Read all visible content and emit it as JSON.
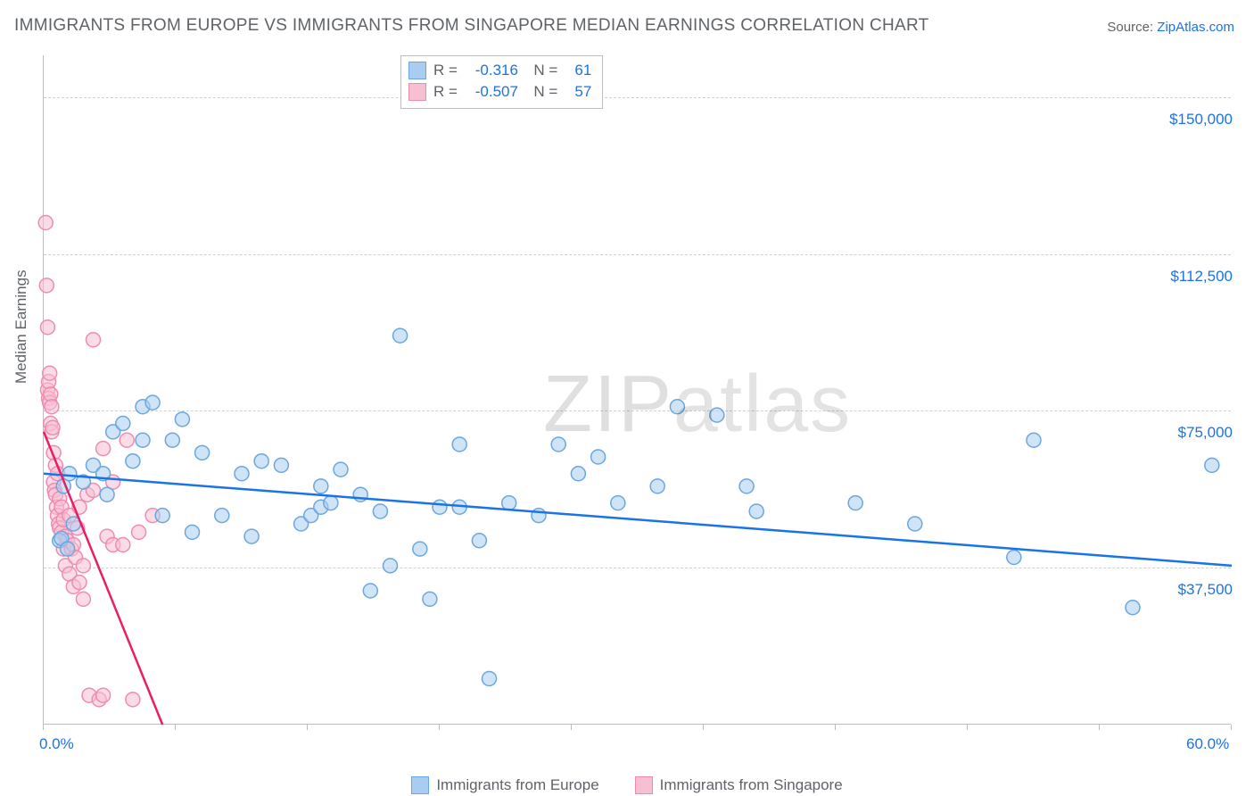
{
  "title": "IMMIGRANTS FROM EUROPE VS IMMIGRANTS FROM SINGAPORE MEDIAN EARNINGS CORRELATION CHART",
  "source_label": "Source: ",
  "source_name": "ZipAtlas.com",
  "yaxis_title": "Median Earnings",
  "watermark_a": "ZIP",
  "watermark_b": "atlas",
  "chart": {
    "type": "scatter",
    "xlim": [
      0,
      60
    ],
    "ylim": [
      0,
      160000
    ],
    "xaxis_labels": [
      {
        "val": 0,
        "text": "0.0%"
      },
      {
        "val": 60,
        "text": "60.0%"
      }
    ],
    "xtick_positions": [
      0,
      6.67,
      13.33,
      20,
      26.67,
      33.33,
      40,
      46.67,
      53.33,
      60
    ],
    "ygrid": [
      {
        "val": 37500,
        "text": "$37,500"
      },
      {
        "val": 75000,
        "text": "$75,000"
      },
      {
        "val": 112500,
        "text": "$112,500"
      },
      {
        "val": 150000,
        "text": "$150,000"
      }
    ],
    "series": [
      {
        "name": "Immigrants from Europe",
        "fill": "#a9cdf0",
        "stroke": "#6ba6de",
        "line_color": "#1a73e8",
        "R": "-0.316",
        "N": "61",
        "trend": {
          "x1": 0,
          "y1": 60000,
          "x2": 60,
          "y2": 38000
        },
        "points": [
          [
            0.8,
            44000
          ],
          [
            0.9,
            44500
          ],
          [
            1.0,
            57000
          ],
          [
            1.2,
            42000
          ],
          [
            1.3,
            60000
          ],
          [
            2.0,
            58000
          ],
          [
            2.5,
            62000
          ],
          [
            3.0,
            60000
          ],
          [
            3.2,
            55000
          ],
          [
            3.5,
            70000
          ],
          [
            4.0,
            72000
          ],
          [
            4.5,
            63000
          ],
          [
            5.0,
            68000
          ],
          [
            5.0,
            76000
          ],
          [
            5.5,
            77000
          ],
          [
            6.0,
            50000
          ],
          [
            6.5,
            68000
          ],
          [
            7.0,
            73000
          ],
          [
            7.5,
            46000
          ],
          [
            8.0,
            65000
          ],
          [
            9.0,
            50000
          ],
          [
            10.0,
            60000
          ],
          [
            10.5,
            45000
          ],
          [
            11.0,
            63000
          ],
          [
            12.0,
            62000
          ],
          [
            13.0,
            48000
          ],
          [
            13.5,
            50000
          ],
          [
            14.0,
            57000
          ],
          [
            14.0,
            52000
          ],
          [
            14.5,
            53000
          ],
          [
            15.0,
            61000
          ],
          [
            16.0,
            55000
          ],
          [
            16.5,
            32000
          ],
          [
            17.0,
            51000
          ],
          [
            17.5,
            38000
          ],
          [
            18.0,
            93000
          ],
          [
            19.0,
            42000
          ],
          [
            19.5,
            30000
          ],
          [
            20.0,
            52000
          ],
          [
            21.0,
            52000
          ],
          [
            21.0,
            67000
          ],
          [
            22.0,
            44000
          ],
          [
            22.5,
            11000
          ],
          [
            23.5,
            53000
          ],
          [
            25.0,
            50000
          ],
          [
            26.0,
            67000
          ],
          [
            27.0,
            60000
          ],
          [
            28.0,
            64000
          ],
          [
            29.0,
            53000
          ],
          [
            31.0,
            57000
          ],
          [
            32.0,
            76000
          ],
          [
            34.0,
            74000
          ],
          [
            35.5,
            57000
          ],
          [
            36.0,
            51000
          ],
          [
            41.0,
            53000
          ],
          [
            44.0,
            48000
          ],
          [
            49.0,
            40000
          ],
          [
            50.0,
            68000
          ],
          [
            55.0,
            28000
          ],
          [
            59.0,
            62000
          ],
          [
            1.5,
            48000
          ]
        ]
      },
      {
        "name": "Immigrants from Singapore",
        "fill": "#f7bfd2",
        "stroke": "#ef8bb0",
        "line_color": "#e91e63",
        "R": "-0.507",
        "N": "57",
        "trend": {
          "x1": 0,
          "y1": 70000,
          "x2": 6,
          "y2": 0
        },
        "points": [
          [
            0.1,
            120000
          ],
          [
            0.15,
            105000
          ],
          [
            0.2,
            95000
          ],
          [
            0.2,
            80000
          ],
          [
            0.25,
            78000
          ],
          [
            0.25,
            82000
          ],
          [
            0.3,
            77000
          ],
          [
            0.3,
            84000
          ],
          [
            0.35,
            79000
          ],
          [
            0.35,
            72000
          ],
          [
            0.4,
            76000
          ],
          [
            0.4,
            70000
          ],
          [
            0.45,
            71000
          ],
          [
            0.5,
            65000
          ],
          [
            0.5,
            58000
          ],
          [
            0.55,
            56000
          ],
          [
            0.6,
            55000
          ],
          [
            0.6,
            62000
          ],
          [
            0.65,
            52000
          ],
          [
            0.7,
            50000
          ],
          [
            0.7,
            60000
          ],
          [
            0.75,
            48000
          ],
          [
            0.8,
            47000
          ],
          [
            0.8,
            54000
          ],
          [
            0.9,
            46000
          ],
          [
            0.9,
            52000
          ],
          [
            1.0,
            49000
          ],
          [
            1.0,
            42000
          ],
          [
            1.1,
            45000
          ],
          [
            1.1,
            38000
          ],
          [
            1.2,
            44000
          ],
          [
            1.3,
            50000
          ],
          [
            1.3,
            36000
          ],
          [
            1.4,
            42000
          ],
          [
            1.5,
            43000
          ],
          [
            1.5,
            33000
          ],
          [
            1.6,
            40000
          ],
          [
            1.7,
            47000
          ],
          [
            1.8,
            52000
          ],
          [
            1.8,
            34000
          ],
          [
            2.0,
            38000
          ],
          [
            2.0,
            30000
          ],
          [
            2.2,
            55000
          ],
          [
            2.3,
            7000
          ],
          [
            2.5,
            92000
          ],
          [
            2.5,
            56000
          ],
          [
            2.8,
            6000
          ],
          [
            3.0,
            66000
          ],
          [
            3.0,
            7000
          ],
          [
            3.2,
            45000
          ],
          [
            3.5,
            58000
          ],
          [
            3.5,
            43000
          ],
          [
            4.0,
            43000
          ],
          [
            4.2,
            68000
          ],
          [
            4.5,
            6000
          ],
          [
            4.8,
            46000
          ],
          [
            5.5,
            50000
          ]
        ]
      }
    ]
  },
  "bottom_legend": [
    {
      "label": "Immigrants from Europe",
      "fill": "#a9cdf0",
      "stroke": "#6ba6de"
    },
    {
      "label": "Immigrants from Singapore",
      "fill": "#f7bfd2",
      "stroke": "#ef8bb0"
    }
  ],
  "colors": {
    "axis": "#bdbdbd",
    "grid": "#d0d0d0",
    "text_muted": "#5f6368",
    "accent": "#1a73e8"
  },
  "marker_radius": 8,
  "marker_opacity": 0.55,
  "line_width": 2.5
}
